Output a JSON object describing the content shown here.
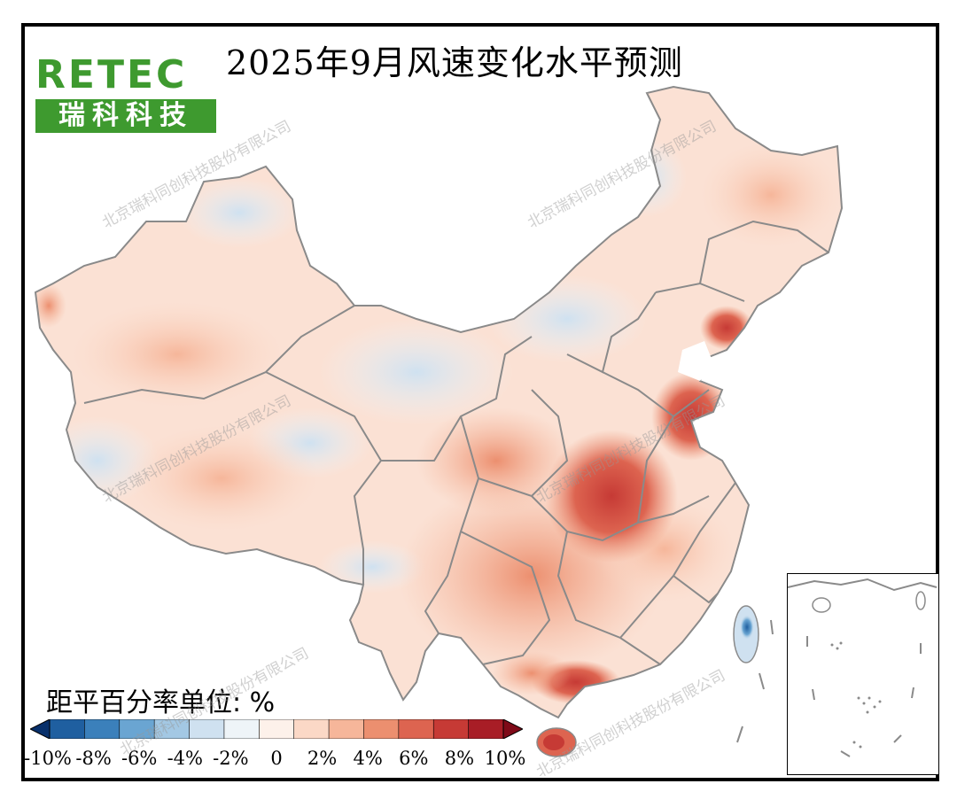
{
  "title": "2025年9月风速变化水平预测",
  "logo": {
    "wordmark": "RETEC",
    "name": "瑞科科技"
  },
  "watermark": "北京瑞科同创科技股份有限公司",
  "legend": {
    "unit_label": "距平百分率单位: %",
    "ticks": [
      "-10%",
      "-8%",
      "-6%",
      "-4%",
      "-2%",
      "0",
      "2%",
      "4%",
      "6%",
      "8%",
      "10%"
    ],
    "colors": [
      "#08306b",
      "#1f5fa0",
      "#3b80bb",
      "#6aa5d2",
      "#a3c8e4",
      "#cfe1f0",
      "#eef4f8",
      "#fdf1ea",
      "#fbd8c6",
      "#f6b69a",
      "#ec8f6f",
      "#dd6450",
      "#c63a35",
      "#a81d26",
      "#7f0a18"
    ]
  },
  "colors": {
    "border": "#000000",
    "province_line": "#8a8a8a",
    "logo_green": "#3e9a2f"
  }
}
